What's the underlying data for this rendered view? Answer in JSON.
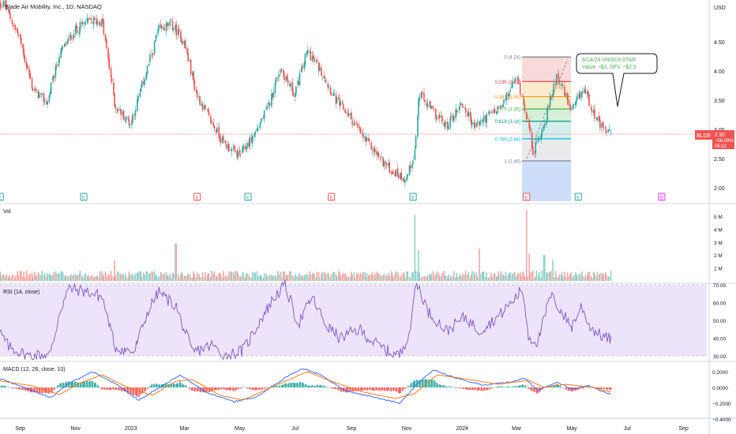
{
  "header": {
    "title": "Blade Air Mobility, Inc., 1D, NASDAQ",
    "currency": "USD"
  },
  "chart_data": {
    "type": "candlestick",
    "ticker": "BLDE",
    "price_axis": {
      "ticks": [
        2.0,
        2.5,
        3.0,
        3.5,
        4.0,
        4.5
      ],
      "labels": [
        "2.00",
        "2.50",
        "3.00",
        "3.50",
        "4.00",
        "4.50"
      ]
    },
    "last_price": {
      "value": "2.92",
      "change": "−56.09%",
      "countdown": "06:22"
    },
    "price_path": [
      [
        "2022-08-15",
        5.15
      ],
      [
        "2022-09-01",
        4.55
      ],
      [
        "2022-09-15",
        3.7
      ],
      [
        "2022-10-01",
        3.45
      ],
      [
        "2022-10-15",
        4.3
      ],
      [
        "2022-11-01",
        4.7
      ],
      [
        "2022-11-15",
        4.85
      ],
      [
        "2022-12-01",
        4.85
      ],
      [
        "2022-12-15",
        3.4
      ],
      [
        "2023-01-01",
        3.1
      ],
      [
        "2023-01-15",
        3.8
      ],
      [
        "2023-02-01",
        4.7
      ],
      [
        "2023-02-15",
        4.8
      ],
      [
        "2023-03-01",
        4.5
      ],
      [
        "2023-03-15",
        3.6
      ],
      [
        "2023-04-01",
        3.1
      ],
      [
        "2023-04-15",
        2.75
      ],
      [
        "2023-05-01",
        2.55
      ],
      [
        "2023-05-15",
        2.85
      ],
      [
        "2023-06-01",
        3.35
      ],
      [
        "2023-06-15",
        4.05
      ],
      [
        "2023-07-01",
        3.6
      ],
      [
        "2023-07-15",
        4.35
      ],
      [
        "2023-08-01",
        3.95
      ],
      [
        "2023-08-15",
        3.5
      ],
      [
        "2023-09-01",
        3.2
      ],
      [
        "2023-09-15",
        2.85
      ],
      [
        "2023-10-01",
        2.55
      ],
      [
        "2023-10-15",
        2.3
      ],
      [
        "2023-11-01",
        2.15
      ],
      [
        "2023-11-10",
        2.6
      ],
      [
        "2023-11-15",
        3.6
      ],
      [
        "2023-12-01",
        3.3
      ],
      [
        "2023-12-15",
        3.05
      ],
      [
        "2024-01-01",
        3.45
      ],
      [
        "2024-01-15",
        3.05
      ],
      [
        "2024-02-01",
        3.25
      ],
      [
        "2024-02-15",
        3.4
      ],
      [
        "2024-03-01",
        3.9
      ],
      [
        "2024-03-10",
        3.45
      ],
      [
        "2024-03-20",
        2.6
      ],
      [
        "2024-04-01",
        3.1
      ],
      [
        "2024-04-15",
        3.95
      ],
      [
        "2024-05-01",
        3.3
      ],
      [
        "2024-05-15",
        3.7
      ],
      [
        "2024-06-01",
        3.05
      ],
      [
        "2024-06-14",
        2.92
      ]
    ],
    "earnings_markers": [
      {
        "date": "2022-08-10",
        "label": "E",
        "kind": "beat"
      },
      {
        "date": "2022-11-10",
        "label": "E",
        "kind": "beat"
      },
      {
        "date": "2023-03-15",
        "label": "E",
        "kind": "miss"
      },
      {
        "date": "2023-05-10",
        "label": "E",
        "kind": "beat"
      },
      {
        "date": "2023-08-10",
        "label": "E",
        "kind": "miss"
      },
      {
        "date": "2023-11-08",
        "label": "E",
        "kind": "beat"
      },
      {
        "date": "2024-03-12",
        "label": "E",
        "kind": "miss"
      },
      {
        "date": "2024-05-08",
        "label": "E",
        "kind": "beat"
      },
      {
        "date": "2024-08-08",
        "label": "E",
        "kind": "upcoming"
      }
    ],
    "fibonacci": {
      "start_date": "2024-03-07",
      "end_date": "2024-04-30",
      "levels": [
        {
          "label": "0 (4.24)",
          "value": 4.24,
          "color": "#787b86",
          "fill": "#f8d3d3"
        },
        {
          "label": "0.236 (3.82)",
          "value": 3.82,
          "color": "#f23645",
          "fill": "#fbe6c6"
        },
        {
          "label": "0.382 (3.56)",
          "value": 3.56,
          "color": "#ff9800",
          "fill": "#e4efc4"
        },
        {
          "label": "0.5 (3.35)",
          "value": 3.35,
          "color": "#4caf50",
          "fill": "#d0ecd4"
        },
        {
          "label": "0.618 (3.14)",
          "value": 3.14,
          "color": "#089981",
          "fill": "#cdebeb"
        },
        {
          "label": "0.786 (2.84)",
          "value": 2.84,
          "color": "#00bcd4",
          "fill": "#e6e6ea"
        },
        {
          "label": "1 (2.46)",
          "value": 2.46,
          "color": "#787b86",
          "fill": "#c9d9f9"
        }
      ]
    },
    "annotation": {
      "line1": "6/14/24 VROCKSTAR",
      "line2": "Value ~$3, DFV ~$2.5"
    },
    "volume": {
      "title": "Vol",
      "ticks": [
        1,
        2,
        3,
        4,
        5
      ],
      "labels": [
        "1 M",
        "2 M",
        "3 M",
        "4 M",
        "5 M"
      ],
      "spikes": [
        [
          "2022-12-15",
          1.6
        ],
        [
          "2023-02-20",
          2.9
        ],
        [
          "2023-11-10",
          5.1
        ],
        [
          "2023-11-15",
          2.4
        ],
        [
          "2024-01-20",
          2.5
        ],
        [
          "2024-03-12",
          5.5
        ],
        [
          "2024-03-15",
          2.1
        ],
        [
          "2024-04-01",
          2.0
        ],
        [
          "2024-04-10",
          1.6
        ]
      ]
    },
    "rsi": {
      "title": "RSI (14, close)",
      "ticks": [
        30,
        40,
        50,
        60,
        70
      ],
      "labels": [
        "30.00",
        "40.00",
        "50.00",
        "60.00",
        "70.00"
      ],
      "upper_band": 70,
      "lower_band": 30,
      "path": [
        [
          "2022-08-01",
          50
        ],
        [
          "2022-08-20",
          35
        ],
        [
          "2022-09-10",
          30
        ],
        [
          "2022-10-05",
          31
        ],
        [
          "2022-10-15",
          55
        ],
        [
          "2022-10-25",
          68
        ],
        [
          "2022-11-15",
          66
        ],
        [
          "2022-12-01",
          63
        ],
        [
          "2022-12-15",
          35
        ],
        [
          "2023-01-05",
          32
        ],
        [
          "2023-01-20",
          55
        ],
        [
          "2023-02-01",
          66
        ],
        [
          "2023-02-20",
          58
        ],
        [
          "2023-03-10",
          32
        ],
        [
          "2023-04-01",
          36
        ],
        [
          "2023-04-15",
          30
        ],
        [
          "2023-05-05",
          33
        ],
        [
          "2023-05-25",
          51
        ],
        [
          "2023-06-10",
          64
        ],
        [
          "2023-06-20",
          70
        ],
        [
          "2023-07-05",
          48
        ],
        [
          "2023-07-20",
          63
        ],
        [
          "2023-08-05",
          47
        ],
        [
          "2023-08-20",
          40
        ],
        [
          "2023-09-10",
          45
        ],
        [
          "2023-09-25",
          38
        ],
        [
          "2023-10-10",
          33
        ],
        [
          "2023-10-25",
          30
        ],
        [
          "2023-11-05",
          45
        ],
        [
          "2023-11-12",
          72
        ],
        [
          "2023-11-25",
          55
        ],
        [
          "2023-12-15",
          44
        ],
        [
          "2024-01-05",
          52
        ],
        [
          "2024-01-20",
          44
        ],
        [
          "2024-02-10",
          52
        ],
        [
          "2024-02-25",
          60
        ],
        [
          "2024-03-08",
          68
        ],
        [
          "2024-03-15",
          40
        ],
        [
          "2024-03-25",
          38
        ],
        [
          "2024-04-08",
          64
        ],
        [
          "2024-04-20",
          55
        ],
        [
          "2024-05-01",
          46
        ],
        [
          "2024-05-12",
          58
        ],
        [
          "2024-05-22",
          46
        ],
        [
          "2024-06-01",
          42
        ],
        [
          "2024-06-14",
          39
        ]
      ]
    },
    "macd": {
      "title": "MACD (12, 26, close, 10)",
      "ticks": [
        0.2,
        0,
        -0.2,
        -0.4
      ],
      "labels": [
        "0.2000",
        "0.0000",
        "−0.2000",
        "−0.4000"
      ],
      "macd_path": [
        [
          "2022-08-01",
          0.15
        ],
        [
          "2022-09-10",
          -0.02
        ],
        [
          "2022-10-05",
          -0.13
        ],
        [
          "2022-10-25",
          0.05
        ],
        [
          "2022-11-20",
          0.2
        ],
        [
          "2022-12-15",
          0.05
        ],
        [
          "2023-01-10",
          -0.16
        ],
        [
          "2023-02-05",
          0.02
        ],
        [
          "2023-02-25",
          0.16
        ],
        [
          "2023-03-25",
          -0.06
        ],
        [
          "2023-04-25",
          -0.18
        ],
        [
          "2023-05-20",
          -0.12
        ],
        [
          "2023-06-20",
          0.12
        ],
        [
          "2023-07-10",
          0.24
        ],
        [
          "2023-07-30",
          0.16
        ],
        [
          "2023-08-25",
          -0.04
        ],
        [
          "2023-09-25",
          -0.12
        ],
        [
          "2023-10-25",
          -0.2
        ],
        [
          "2023-11-15",
          0.07
        ],
        [
          "2023-12-01",
          0.22
        ],
        [
          "2023-12-25",
          0.12
        ],
        [
          "2024-01-25",
          0.03
        ],
        [
          "2024-02-25",
          0.07
        ],
        [
          "2024-03-10",
          0.12
        ],
        [
          "2024-03-25",
          -0.04
        ],
        [
          "2024-04-15",
          0.07
        ],
        [
          "2024-05-01",
          -0.02
        ],
        [
          "2024-05-20",
          0.02
        ],
        [
          "2024-06-14",
          -0.09
        ]
      ],
      "signal_path": [
        [
          "2022-08-01",
          0.1
        ],
        [
          "2022-09-15",
          0.02
        ],
        [
          "2022-10-15",
          -0.09
        ],
        [
          "2022-11-05",
          0.05
        ],
        [
          "2022-12-01",
          0.16
        ],
        [
          "2022-12-25",
          0.02
        ],
        [
          "2023-01-25",
          -0.1
        ],
        [
          "2023-02-20",
          0.08
        ],
        [
          "2023-03-10",
          0.1
        ],
        [
          "2023-04-10",
          -0.1
        ],
        [
          "2023-05-05",
          -0.16
        ],
        [
          "2023-06-05",
          0.0
        ],
        [
          "2023-07-15",
          0.2
        ],
        [
          "2023-08-10",
          0.08
        ],
        [
          "2023-09-15",
          -0.06
        ],
        [
          "2023-10-20",
          -0.14
        ],
        [
          "2023-11-10",
          -0.08
        ],
        [
          "2023-12-05",
          0.16
        ],
        [
          "2024-01-10",
          0.1
        ],
        [
          "2024-02-10",
          0.04
        ],
        [
          "2024-03-15",
          0.09
        ],
        [
          "2024-04-01",
          0.0
        ],
        [
          "2024-04-25",
          0.04
        ],
        [
          "2024-05-25",
          0.0
        ],
        [
          "2024-06-14",
          -0.06
        ]
      ]
    },
    "time_axis": {
      "ticks": [
        [
          "2022-09-01",
          "Sep"
        ],
        [
          "2022-11-01",
          "Nov"
        ],
        [
          "2023-01-01",
          "2023"
        ],
        [
          "2023-03-01",
          "Mar"
        ],
        [
          "2023-05-01",
          "May"
        ],
        [
          "2023-07-01",
          "Jul"
        ],
        [
          "2023-09-01",
          "Sep"
        ],
        [
          "2023-11-01",
          "Nov"
        ],
        [
          "2024-01-01",
          "2024"
        ],
        [
          "2024-03-01",
          "Mar"
        ],
        [
          "2024-05-01",
          "May"
        ],
        [
          "2024-07-01",
          "Jul"
        ],
        [
          "2024-09-01",
          "Sep"
        ]
      ]
    },
    "colors": {
      "up": "#26a69a",
      "down": "#ef5350",
      "rsi": "#7e57c2",
      "macd": "#2962ff",
      "signal": "#ff6d00"
    }
  }
}
